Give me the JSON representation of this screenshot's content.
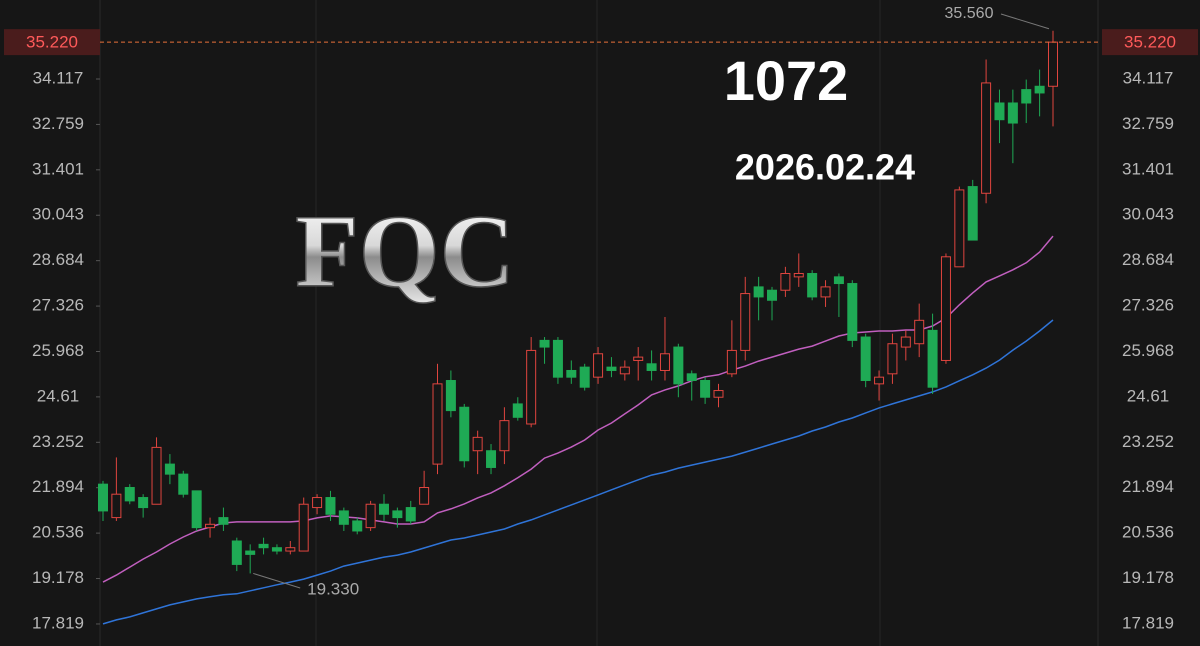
{
  "chart_data": {
    "type": "candlestick",
    "annotations": [
      "FQC",
      "1072",
      "2026.02.24"
    ],
    "up_color": "#e0453f",
    "down_color": "#1faa55",
    "open": [
      22.0,
      21.0,
      21.9,
      21.6,
      21.4,
      22.6,
      22.3,
      21.8,
      20.7,
      21.0,
      20.3,
      20.0,
      20.2,
      20.1,
      20.0,
      20.0,
      21.3,
      21.6,
      21.2,
      20.9,
      20.7,
      21.4,
      21.2,
      21.3,
      21.4,
      22.6,
      25.1,
      24.3,
      23.0,
      23.0,
      23.0,
      24.4,
      23.8,
      26.3,
      26.3,
      25.4,
      25.5,
      25.2,
      25.5,
      25.3,
      25.7,
      25.6,
      25.4,
      26.1,
      25.3,
      25.1,
      24.6,
      25.3,
      26.0,
      27.9,
      27.8,
      27.8,
      28.2,
      28.3,
      27.6,
      28.2,
      28.0,
      26.4,
      25.0,
      25.3,
      26.1,
      26.2,
      26.6,
      25.7,
      28.5,
      30.9,
      30.7,
      33.4,
      33.4,
      33.8,
      33.9,
      33.9
    ],
    "high": [
      22.1,
      22.8,
      22.0,
      21.7,
      23.4,
      22.9,
      22.4,
      21.8,
      21.0,
      21.3,
      20.4,
      20.2,
      20.4,
      20.2,
      20.3,
      21.6,
      21.7,
      21.8,
      21.3,
      21.0,
      21.5,
      21.7,
      21.3,
      21.5,
      22.4,
      25.6,
      25.4,
      24.4,
      23.6,
      23.2,
      24.3,
      24.6,
      26.4,
      26.4,
      26.4,
      25.7,
      25.6,
      26.1,
      25.8,
      25.7,
      26.1,
      26.0,
      27.0,
      26.2,
      25.4,
      25.2,
      25.0,
      26.9,
      28.2,
      28.2,
      27.9,
      28.5,
      28.9,
      28.4,
      28.1,
      28.3,
      28.1,
      26.5,
      25.4,
      26.5,
      26.6,
      27.4,
      27.1,
      28.9,
      30.9,
      31.1,
      34.7,
      33.8,
      33.8,
      34.1,
      34.4,
      35.56
    ],
    "low": [
      20.9,
      20.9,
      21.4,
      21.0,
      21.4,
      22.0,
      21.6,
      20.6,
      20.4,
      20.6,
      19.4,
      19.33,
      19.9,
      19.9,
      19.9,
      20.0,
      21.1,
      20.9,
      20.6,
      20.5,
      20.6,
      20.9,
      20.7,
      20.8,
      21.4,
      22.3,
      24.0,
      22.5,
      22.3,
      22.3,
      22.6,
      23.9,
      23.7,
      25.6,
      25.0,
      25.0,
      24.8,
      25.0,
      25.2,
      25.1,
      25.1,
      25.1,
      25.1,
      24.6,
      24.5,
      24.4,
      24.3,
      25.2,
      25.7,
      26.9,
      26.9,
      27.6,
      27.9,
      27.5,
      27.3,
      27.0,
      26.1,
      24.9,
      24.5,
      25.0,
      25.7,
      25.8,
      24.7,
      25.6,
      28.5,
      29.3,
      30.4,
      32.2,
      31.6,
      32.8,
      33.0,
      32.7
    ],
    "close": [
      21.2,
      21.7,
      21.5,
      21.3,
      23.1,
      22.3,
      21.7,
      20.7,
      20.8,
      20.8,
      19.6,
      19.9,
      20.1,
      20.0,
      20.1,
      21.4,
      21.6,
      21.1,
      20.8,
      20.6,
      21.4,
      21.1,
      21.0,
      20.9,
      21.9,
      25.0,
      24.2,
      22.7,
      23.4,
      22.5,
      23.9,
      24.0,
      26.0,
      26.1,
      25.2,
      25.2,
      24.9,
      25.9,
      25.4,
      25.5,
      25.8,
      25.4,
      25.9,
      25.0,
      25.1,
      24.6,
      24.8,
      26.0,
      27.7,
      27.6,
      27.5,
      28.3,
      28.3,
      27.6,
      27.9,
      28.0,
      26.3,
      25.1,
      25.2,
      26.2,
      26.4,
      26.9,
      24.9,
      28.8,
      30.8,
      29.3,
      34.0,
      32.9,
      32.8,
      33.4,
      33.7,
      35.22
    ],
    "series": [
      {
        "color": "#c15fbf",
        "values": [
          19.07,
          19.28,
          19.52,
          19.76,
          19.97,
          20.21,
          20.42,
          20.6,
          20.72,
          20.84,
          20.87,
          20.87,
          20.87,
          20.87,
          20.87,
          20.9,
          20.99,
          21.05,
          21.02,
          20.99,
          20.93,
          20.87,
          20.81,
          20.81,
          20.87,
          21.14,
          21.26,
          21.41,
          21.59,
          21.74,
          21.95,
          22.19,
          22.45,
          22.78,
          22.93,
          23.11,
          23.32,
          23.62,
          23.83,
          24.1,
          24.37,
          24.67,
          24.82,
          24.94,
          25.09,
          25.21,
          25.27,
          25.41,
          25.53,
          25.68,
          25.8,
          25.92,
          26.04,
          26.13,
          26.28,
          26.43,
          26.52,
          26.55,
          26.58,
          26.58,
          26.61,
          26.61,
          26.73,
          26.97,
          27.36,
          27.72,
          28.05,
          28.23,
          28.41,
          28.62,
          28.94,
          29.42
        ]
      },
      {
        "color": "#2f74d8",
        "values": [
          17.82,
          17.94,
          18.03,
          18.15,
          18.27,
          18.39,
          18.48,
          18.57,
          18.63,
          18.69,
          18.72,
          18.81,
          18.9,
          18.99,
          19.07,
          19.16,
          19.28,
          19.4,
          19.55,
          19.64,
          19.73,
          19.82,
          19.88,
          19.97,
          20.09,
          20.21,
          20.33,
          20.39,
          20.48,
          20.57,
          20.66,
          20.81,
          20.93,
          21.08,
          21.23,
          21.38,
          21.53,
          21.68,
          21.83,
          21.98,
          22.13,
          22.27,
          22.36,
          22.48,
          22.57,
          22.66,
          22.75,
          22.84,
          22.96,
          23.08,
          23.2,
          23.32,
          23.44,
          23.59,
          23.71,
          23.86,
          23.98,
          24.13,
          24.28,
          24.4,
          24.52,
          24.64,
          24.76,
          24.91,
          25.09,
          25.27,
          25.47,
          25.71,
          26.01,
          26.28,
          26.58,
          26.91
        ]
      }
    ],
    "last_price": {
      "value": 35.22,
      "label": "35.220"
    },
    "high_marker": {
      "value": 35.56,
      "label": "35.560"
    },
    "low_marker": {
      "value": 19.33,
      "label": "19.330"
    },
    "ylim": [
      17.16,
      36.48
    ],
    "yticks": [
      34.117,
      32.759,
      31.401,
      30.043,
      28.684,
      27.326,
      25.968,
      24.61,
      23.252,
      21.894,
      20.536,
      19.178,
      17.819
    ]
  }
}
